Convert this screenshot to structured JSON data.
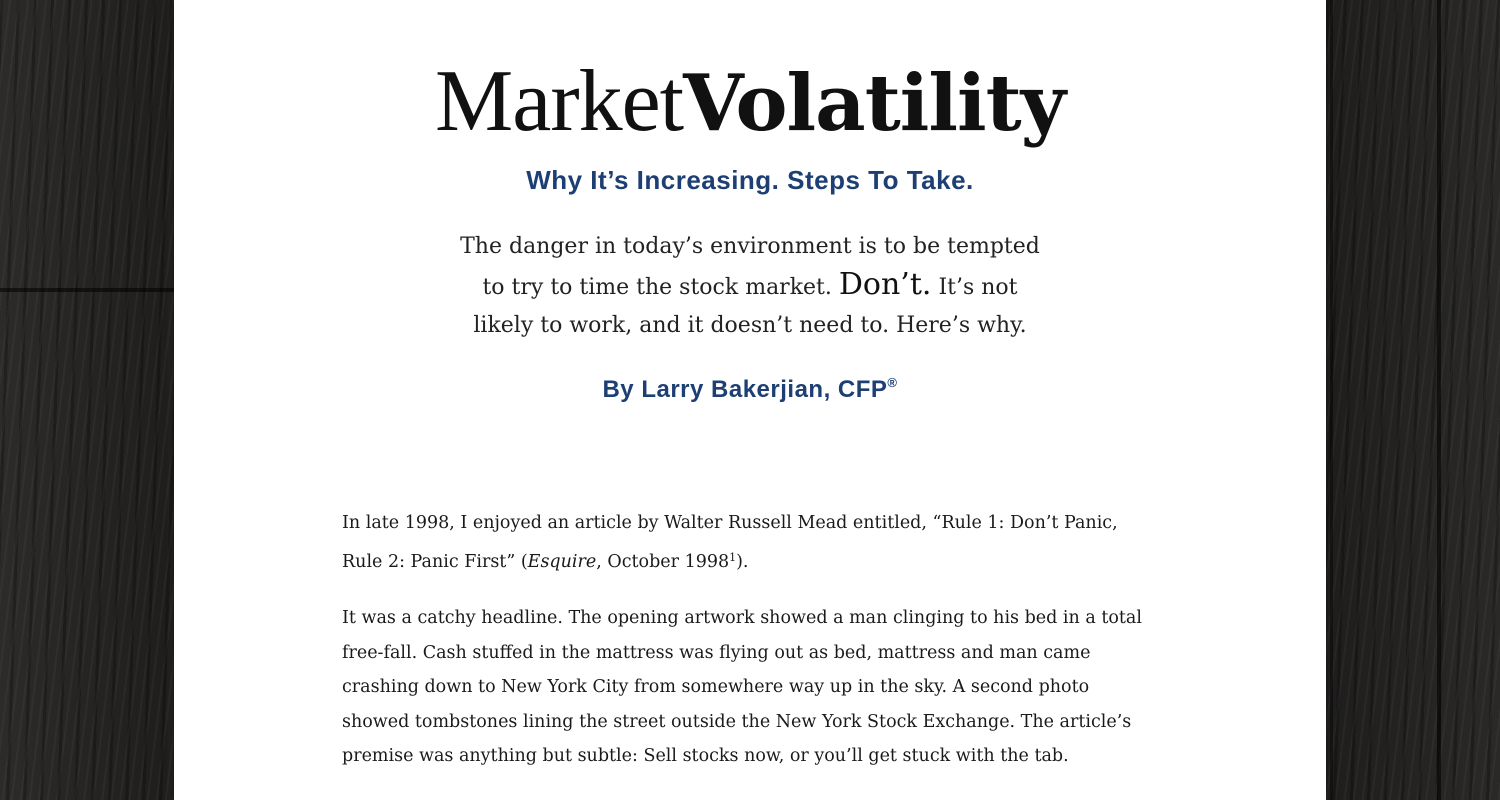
{
  "article": {
    "title_part1": "Market",
    "title_part2": "Volatility",
    "subtitle": "Why It’s Increasing. Steps To Take.",
    "intro_part1": "The danger in today’s environment is to be tempted to try to time the stock market. ",
    "intro_emphasis": "Don’t.",
    "intro_part2": " It’s not likely to work, and it doesn’t need to. Here’s why.",
    "byline": "By Larry Bakerjian, CFP",
    "byline_mark": "®",
    "p1_part1": "In late 1998, I enjoyed an article by Walter Russell Mead entitled, “Rule 1: Don’t Panic, Rule 2: Panic First” (",
    "p1_italic": "Esquire",
    "p1_part2": ", October 1998",
    "p1_footnote": "1",
    "p1_part3": ").",
    "p2": "It was a catchy headline. The opening artwork showed a man clinging to his bed in a total free-fall. Cash stuffed in the mattress was flying out as bed, mattress and man came crashing down to New York City from somewhere way up in the sky. A second photo showed tombstones lining the street outside the New York Stock Exchange. The article’s premise was anything but subtle: Sell stocks now, or you’ll get stuck with the tab."
  },
  "colors": {
    "accent_blue": "#1d3f73",
    "paper": "#ffffff",
    "background_wood": "#262524"
  }
}
